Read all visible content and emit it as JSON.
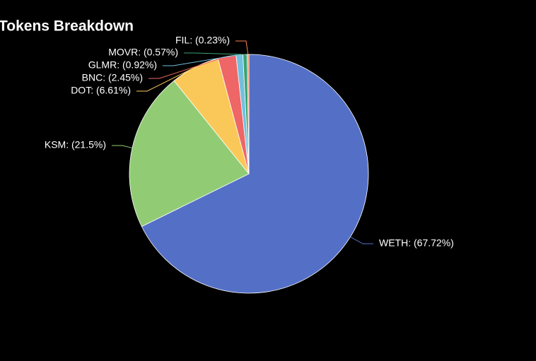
{
  "chart_data": {
    "type": "pie",
    "title": "Tokens Breakdown",
    "labels": [
      "WETH: (67.72%)",
      "KSM: (21.5%)",
      "DOT: (6.61%)",
      "BNC: (2.45%)",
      "GLMR: (0.92%)",
      "MOVR: (0.57%)",
      "FIL: (0.23%)"
    ],
    "values": [
      67.72,
      21.5,
      6.61,
      2.45,
      0.92,
      0.57,
      0.23
    ],
    "colors": [
      "#5470c6",
      "#91cc75",
      "#fac858",
      "#ee6666",
      "#73c0de",
      "#3ba272",
      "#fc8452"
    ]
  }
}
